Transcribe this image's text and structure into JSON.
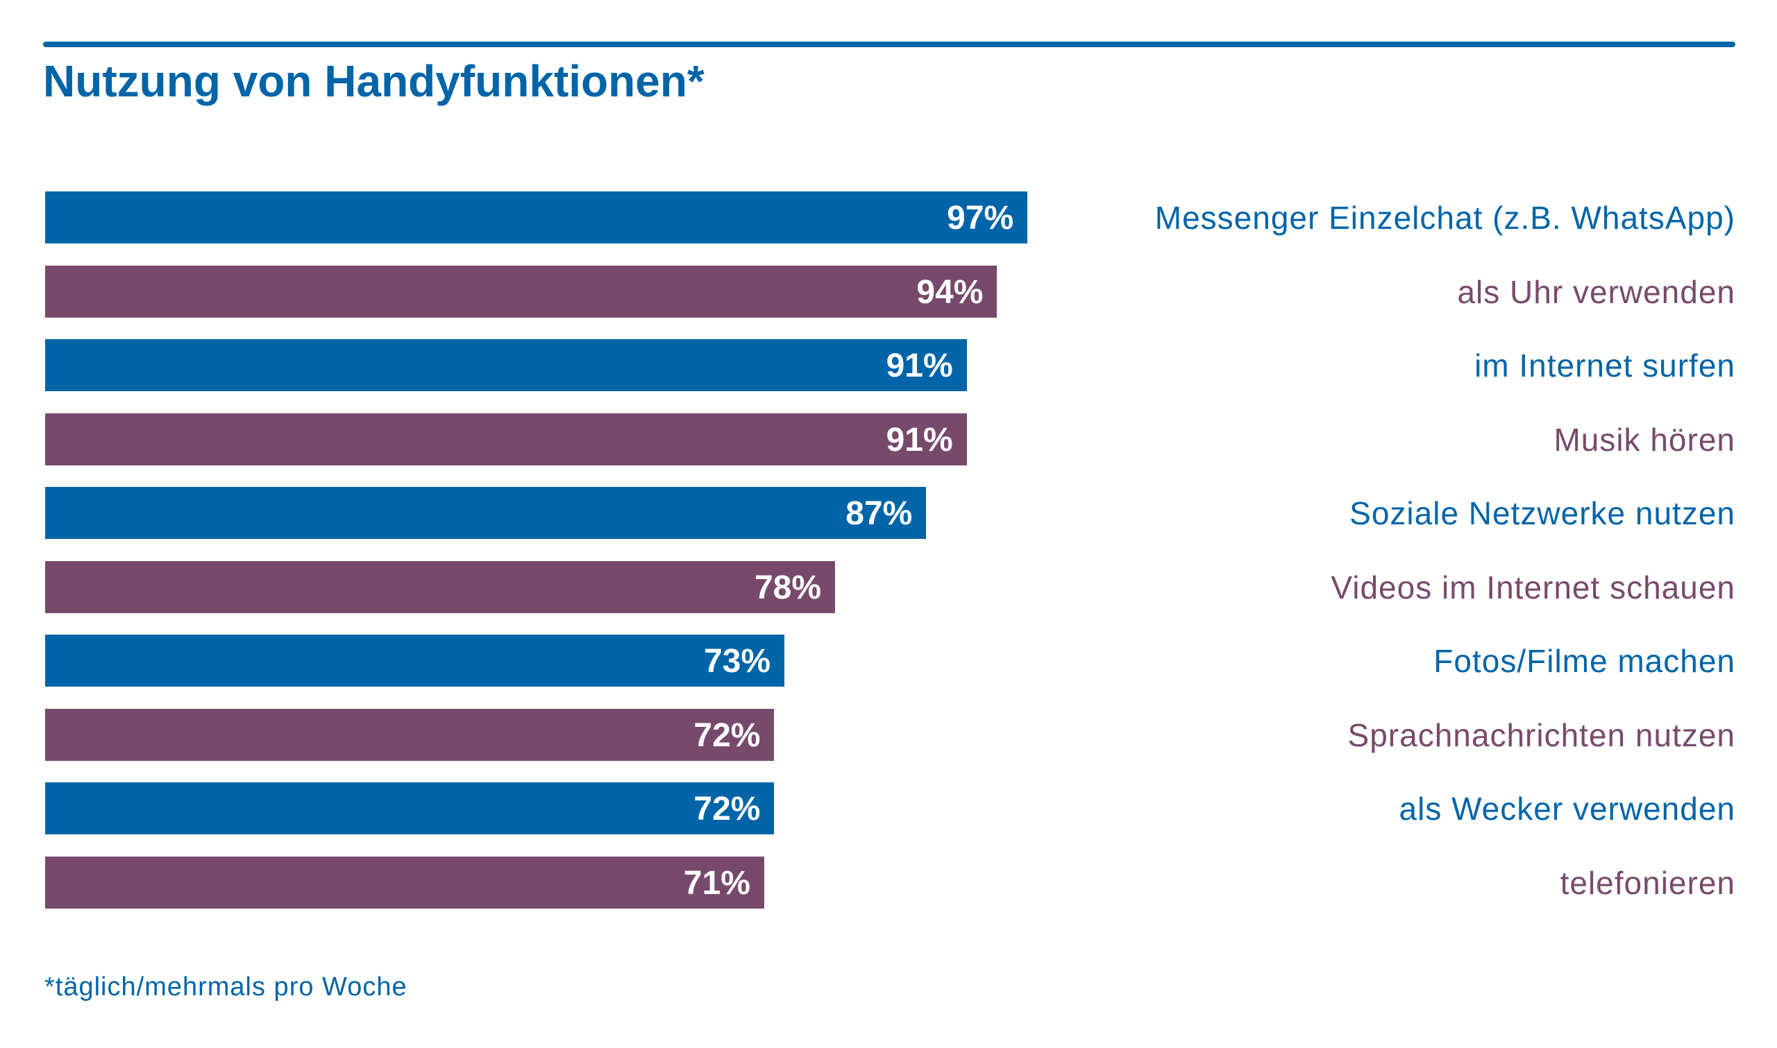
{
  "colors": {
    "blue": "#0064a8",
    "purple": "#774a6c"
  },
  "chart_data": {
    "type": "bar",
    "orientation": "horizontal",
    "title": "Nutzung von Handyfunktionen*",
    "categories": [
      "Messenger Einzelchat (z.B. WhatsApp)",
      "als Uhr verwenden",
      "im Internet surfen",
      "Musik hören",
      "Soziale Netzwerke nutzen",
      "Videos im Internet schauen",
      "Fotos/Filme machen",
      "Sprachnachrichten nutzen",
      "als Wecker verwenden",
      "telefonieren"
    ],
    "values": [
      97,
      94,
      91,
      91,
      87,
      78,
      73,
      72,
      72,
      71
    ],
    "value_labels": [
      "97%",
      "94%",
      "91%",
      "91%",
      "87%",
      "78%",
      "73%",
      "72%",
      "72%",
      "71%"
    ],
    "bar_colors": [
      "blue",
      "purple",
      "blue",
      "purple",
      "blue",
      "purple",
      "blue",
      "purple",
      "blue",
      "purple"
    ],
    "xlim": [
      0,
      100
    ],
    "grid": false,
    "axes_visible": false,
    "footnote": "*täglich/mehrmals pro Woche"
  }
}
